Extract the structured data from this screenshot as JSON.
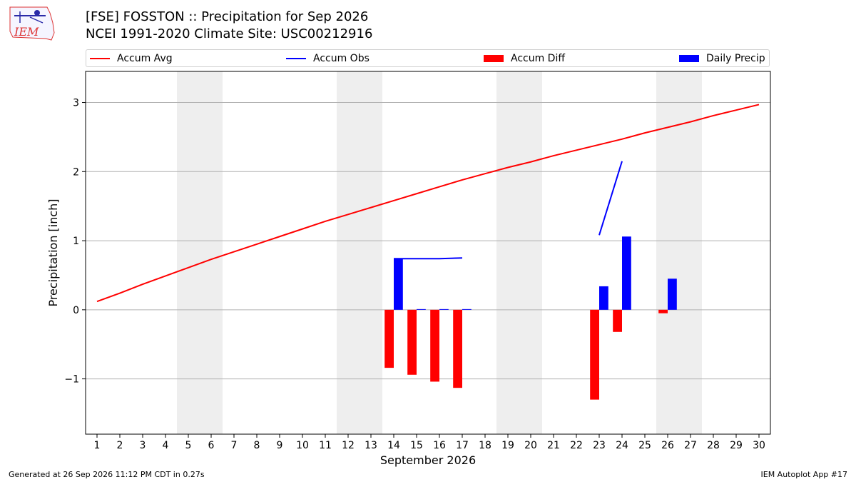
{
  "header": {
    "title": "[FSE] FOSSTON :: Precipitation for Sep 2026",
    "subtitle": "NCEI 1991-2020 Climate Site: USC00212916"
  },
  "logo": {
    "text": "IEM"
  },
  "footer": {
    "left": "Generated at 26 Sep 2026 11:12 PM CDT in 0.27s",
    "right": "IEM Autoplot App #17"
  },
  "chart_data": {
    "type": "bar",
    "title": "[FSE] FOSSTON :: Precipitation for Sep 2026",
    "xlabel": "September 2026",
    "ylabel": "Precipitation [inch]",
    "x": [
      1,
      2,
      3,
      4,
      5,
      6,
      7,
      8,
      9,
      10,
      11,
      12,
      13,
      14,
      15,
      16,
      17,
      18,
      19,
      20,
      21,
      22,
      23,
      24,
      25,
      26,
      27,
      28,
      29,
      30
    ],
    "xlim": [
      0.5,
      30.5
    ],
    "ylim": [
      -1.8,
      3.45
    ],
    "yticks": [
      -1,
      0,
      1,
      2,
      3
    ],
    "ytick_labels": [
      "−1",
      "0",
      "1",
      "2",
      "3"
    ],
    "grid": "horizontal",
    "legend_placement": "top",
    "weekend_shading": [
      [
        4.5,
        6.5
      ],
      [
        11.5,
        13.5
      ],
      [
        18.5,
        20.5
      ],
      [
        25.5,
        27.5
      ]
    ],
    "series": [
      {
        "name": "Accum Avg",
        "kind": "line",
        "color": "#ff0000",
        "x": [
          1,
          2,
          3,
          4,
          5,
          6,
          7,
          8,
          9,
          10,
          11,
          12,
          13,
          14,
          15,
          16,
          17,
          18,
          19,
          20,
          21,
          22,
          23,
          24,
          25,
          26,
          27,
          28,
          29,
          30
        ],
        "values": [
          0.12,
          0.24,
          0.37,
          0.49,
          0.61,
          0.73,
          0.84,
          0.95,
          1.06,
          1.17,
          1.28,
          1.38,
          1.48,
          1.58,
          1.68,
          1.78,
          1.88,
          1.97,
          2.06,
          2.14,
          2.23,
          2.31,
          2.39,
          2.47,
          2.56,
          2.64,
          2.72,
          2.81,
          2.89,
          2.97
        ]
      },
      {
        "name": "Accum Obs",
        "kind": "line",
        "color": "#0000ff",
        "segments": [
          {
            "x": [
              14,
              15,
              16,
              17
            ],
            "values": [
              0.74,
              0.74,
              0.74,
              0.75
            ]
          },
          {
            "x": [
              23,
              24
            ],
            "values": [
              1.08,
              2.15
            ]
          }
        ]
      },
      {
        "name": "Accum Diff",
        "kind": "bar",
        "color": "#ff0000",
        "x": [
          14,
          15,
          16,
          17,
          23,
          24,
          26
        ],
        "values": [
          -0.84,
          -0.94,
          -1.04,
          -1.13,
          -1.3,
          -0.32,
          -0.05
        ]
      },
      {
        "name": "Daily Precip",
        "kind": "bar",
        "color": "#0000ff",
        "x": [
          14,
          15,
          16,
          17,
          23,
          24,
          26
        ],
        "values": [
          0.74,
          0.01,
          0.01,
          0.01,
          0.34,
          1.06,
          0.45
        ]
      }
    ]
  }
}
